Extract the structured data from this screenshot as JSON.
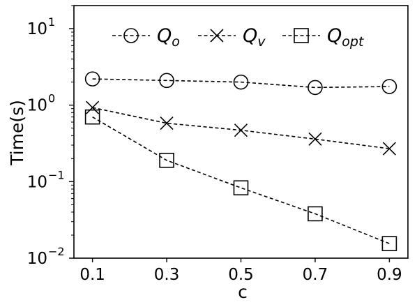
{
  "chart_data": {
    "type": "line",
    "xlabel": "c",
    "ylabel": "Time(s)",
    "yscale": "log",
    "x": [
      0.1,
      0.3,
      0.5,
      0.7,
      0.9
    ],
    "x_tick_labels": [
      "0.1",
      "0.3",
      "0.5",
      "0.7",
      "0.9"
    ],
    "xlim": [
      0.05,
      0.95
    ],
    "ylim": [
      0.01,
      20
    ],
    "y_ticks": [
      {
        "value": 0.01,
        "base": "10",
        "exp": "−2"
      },
      {
        "value": 0.1,
        "base": "10",
        "exp": "−1"
      },
      {
        "value": 1,
        "base": "10",
        "exp": "0"
      },
      {
        "value": 10,
        "base": "10",
        "exp": "1"
      }
    ],
    "grid": false,
    "legend_position": "top",
    "series": [
      {
        "name": "Q",
        "sub": "o",
        "marker": "circle",
        "values": [
          2.2,
          2.1,
          2.0,
          1.7,
          1.75
        ]
      },
      {
        "name": "Q",
        "sub": "v",
        "marker": "x",
        "values": [
          0.93,
          0.58,
          0.47,
          0.36,
          0.27
        ]
      },
      {
        "name": "Q",
        "sub": "opt",
        "marker": "square",
        "values": [
          0.7,
          0.19,
          0.083,
          0.038,
          0.0155
        ]
      }
    ]
  }
}
